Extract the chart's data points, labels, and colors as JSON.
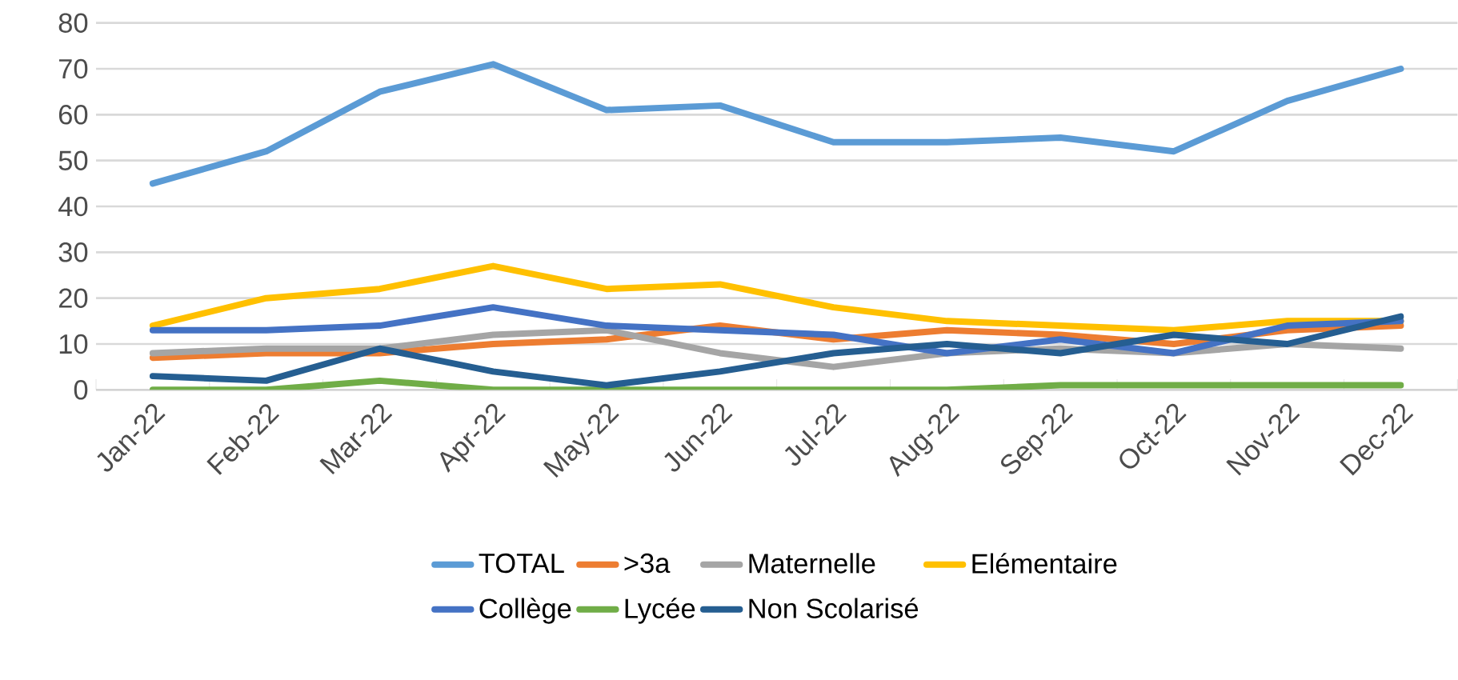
{
  "chart_data": {
    "type": "line",
    "categories": [
      "Jan-22",
      "Feb-22",
      "Mar-22",
      "Apr-22",
      "May-22",
      "Jun-22",
      "Jul-22",
      "Aug-22",
      "Sep-22",
      "Oct-22",
      "Nov-22",
      "Dec-22"
    ],
    "series": [
      {
        "name": "TOTAL",
        "color": "#5b9bd5",
        "values": [
          45,
          52,
          65,
          71,
          61,
          62,
          54,
          54,
          55,
          52,
          63,
          70
        ]
      },
      {
        "name": ">3a",
        "color": "#ed7d31",
        "values": [
          7,
          8,
          8,
          10,
          11,
          14,
          11,
          13,
          12,
          10,
          13,
          14
        ]
      },
      {
        "name": "Maternelle",
        "color": "#a5a5a5",
        "values": [
          8,
          9,
          9,
          12,
          13,
          8,
          5,
          8,
          9,
          8,
          10,
          9
        ]
      },
      {
        "name": "Elémentaire",
        "color": "#ffc000",
        "values": [
          14,
          20,
          22,
          27,
          22,
          23,
          18,
          15,
          14,
          13,
          15,
          15
        ]
      },
      {
        "name": "Collège",
        "color": "#4472c4",
        "values": [
          13,
          13,
          14,
          18,
          14,
          13,
          12,
          8,
          11,
          8,
          14,
          15
        ]
      },
      {
        "name": "Lycée",
        "color": "#70ad47",
        "values": [
          0,
          0,
          2,
          0,
          0,
          0,
          0,
          0,
          1,
          1,
          1,
          1
        ]
      },
      {
        "name": "Non Scolarisé",
        "color": "#255e91",
        "values": [
          3,
          2,
          9,
          4,
          1,
          4,
          8,
          10,
          8,
          12,
          10,
          16
        ]
      }
    ],
    "ylim": [
      0,
      80
    ],
    "yticks": [
      0,
      10,
      20,
      30,
      40,
      50,
      60,
      70,
      80
    ],
    "grid": "y",
    "legend": "bottom",
    "marker": "none",
    "line_style": "solid"
  }
}
